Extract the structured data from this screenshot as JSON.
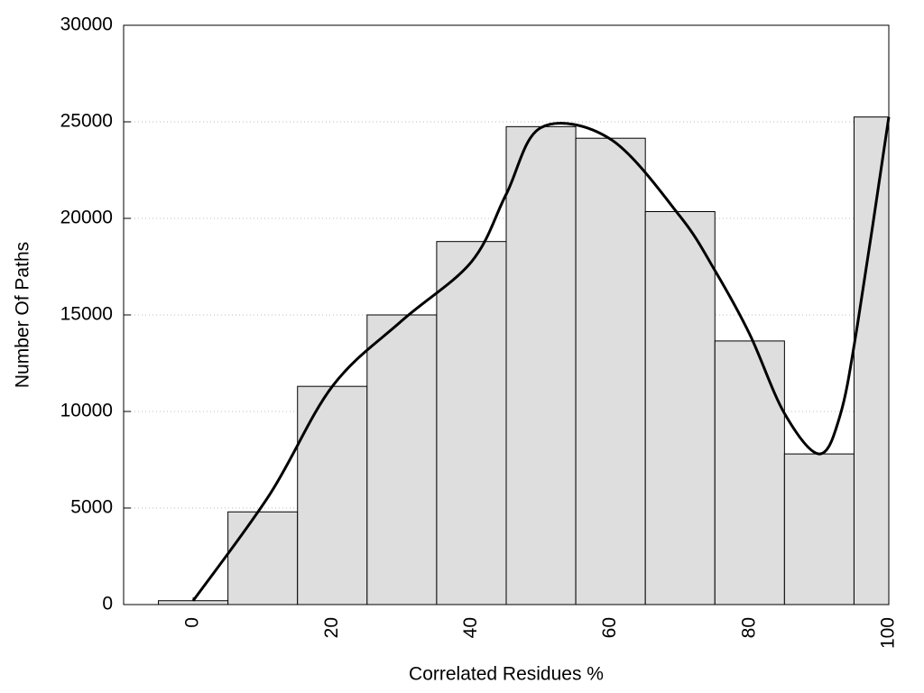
{
  "chart_data": {
    "type": "histogram",
    "bins": [
      -5,
      5,
      15,
      25,
      35,
      45,
      55,
      65,
      75,
      85,
      95,
      100
    ],
    "values": [
      200,
      4800,
      11300,
      15000,
      18800,
      24750,
      24150,
      20350,
      13650,
      7800,
      25250
    ],
    "color": "#dedede",
    "line": {
      "color": "#000000",
      "x": [
        0,
        11,
        20,
        30,
        40,
        45,
        50,
        60,
        70,
        75,
        80,
        85,
        90,
        93,
        95.5,
        100
      ],
      "values": [
        200,
        5700,
        11300,
        14700,
        17750,
        21250,
        24700,
        24100,
        20100,
        17300,
        14000,
        9900,
        7800,
        9800,
        14500,
        25250
      ]
    },
    "xlabel": "Correlated Residues %",
    "ylabel": "Number Of Paths",
    "xlim": [
      -10,
      100
    ],
    "ylim": [
      0,
      30000
    ],
    "xticks": [
      0,
      20,
      40,
      60,
      80,
      100
    ],
    "yticks": [
      0,
      5000,
      10000,
      15000,
      20000,
      25000,
      30000
    ],
    "grid": true
  }
}
